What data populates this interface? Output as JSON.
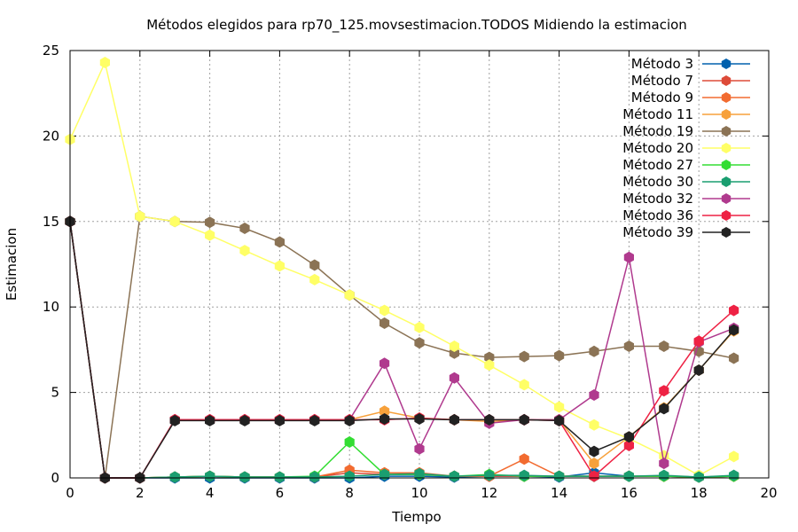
{
  "chart_data": {
    "type": "line",
    "title": "Métodos elegidos para rp70_125.movsestimacion.TODOS Midiendo la estimacion",
    "xlabel": "Tiempo",
    "ylabel": "Estimacion",
    "xlim": [
      0,
      20
    ],
    "ylim": [
      0,
      25
    ],
    "xticks": [
      0,
      2,
      4,
      6,
      8,
      10,
      12,
      14,
      16,
      18,
      20
    ],
    "yticks": [
      0,
      5,
      10,
      15,
      20,
      25
    ],
    "grid": true,
    "legend_position": "top-right",
    "x": [
      0,
      1,
      2,
      3,
      4,
      5,
      6,
      7,
      8,
      9,
      10,
      11,
      12,
      13,
      14,
      15,
      16,
      17,
      18,
      19
    ],
    "series": [
      {
        "name": "Método 3",
        "color": "#0060ad",
        "values": [
          15,
          0,
          0,
          0,
          0,
          0,
          0,
          0,
          0,
          0.1,
          0.1,
          0.05,
          0.1,
          0.1,
          0.05,
          0.3,
          0.1,
          0.1,
          0.05,
          0.1
        ]
      },
      {
        "name": "Método 7",
        "color": "#dd4b39",
        "values": [
          15,
          0,
          0,
          0.05,
          0.1,
          0.05,
          0.05,
          0.05,
          0.3,
          0.2,
          0.2,
          0.1,
          0.1,
          0.1,
          0.1,
          0.1,
          0.1,
          0.1,
          0.05,
          0.1
        ]
      },
      {
        "name": "Método 9",
        "color": "#f26b30",
        "values": [
          15,
          0,
          0,
          0.05,
          0.1,
          0.05,
          0.05,
          0.05,
          0.45,
          0.3,
          0.3,
          0.1,
          0.1,
          1.1,
          0.1,
          0.1,
          0.1,
          0.1,
          0.05,
          0.1
        ]
      },
      {
        "name": "Método 11",
        "color": "#f7a13b",
        "values": [
          15,
          0,
          0,
          3.4,
          3.4,
          3.4,
          3.4,
          3.4,
          3.4,
          3.9,
          3.5,
          3.4,
          3.3,
          3.4,
          3.4,
          0.85,
          2.4,
          4.1,
          6.3,
          8.6
        ]
      },
      {
        "name": "Método 19",
        "color": "#8b7355",
        "values": [
          15,
          0,
          15.3,
          15.0,
          14.95,
          14.6,
          13.8,
          12.45,
          10.7,
          9.05,
          7.9,
          7.3,
          7.05,
          7.1,
          7.15,
          7.4,
          7.7,
          7.7,
          7.4,
          7.0
        ]
      },
      {
        "name": "Método 20",
        "color": "#ffff66",
        "values": [
          19.8,
          24.3,
          15.3,
          15.0,
          14.2,
          13.3,
          12.4,
          11.6,
          10.7,
          9.8,
          8.8,
          7.7,
          6.6,
          5.45,
          4.15,
          3.1,
          2.3,
          1.3,
          0.15,
          1.25
        ]
      },
      {
        "name": "Método 27",
        "color": "#33dd33",
        "values": [
          15,
          0,
          0,
          0.05,
          0.1,
          0.05,
          0.05,
          0.1,
          2.1,
          0.2,
          0.2,
          0.1,
          0.2,
          0.1,
          0.1,
          0.1,
          0.1,
          0.1,
          0.05,
          0.1
        ]
      },
      {
        "name": "Método 30",
        "color": "#1a9e70",
        "values": [
          15,
          0,
          0,
          0.05,
          0.1,
          0.05,
          0.05,
          0.05,
          0.1,
          0.2,
          0.25,
          0.1,
          0.15,
          0.15,
          0.1,
          0.1,
          0.1,
          0.15,
          0.05,
          0.15
        ]
      },
      {
        "name": "Método 32",
        "color": "#b03a8e",
        "values": [
          15,
          0,
          0,
          3.4,
          3.4,
          3.4,
          3.4,
          3.4,
          3.4,
          6.7,
          1.7,
          5.85,
          3.2,
          3.4,
          3.4,
          4.85,
          12.9,
          0.85,
          7.95,
          8.75
        ]
      },
      {
        "name": "Método 36",
        "color": "#ee2244",
        "values": [
          15,
          0,
          0,
          3.4,
          3.4,
          3.4,
          3.4,
          3.4,
          3.4,
          3.4,
          3.5,
          3.4,
          3.4,
          3.4,
          3.35,
          0.1,
          1.9,
          5.1,
          8.0,
          9.8
        ]
      },
      {
        "name": "Método 39",
        "color": "#222222",
        "values": [
          15,
          0,
          0,
          3.35,
          3.35,
          3.35,
          3.35,
          3.35,
          3.35,
          3.45,
          3.45,
          3.4,
          3.4,
          3.4,
          3.35,
          1.55,
          2.4,
          4.05,
          6.3,
          8.65
        ]
      }
    ]
  }
}
